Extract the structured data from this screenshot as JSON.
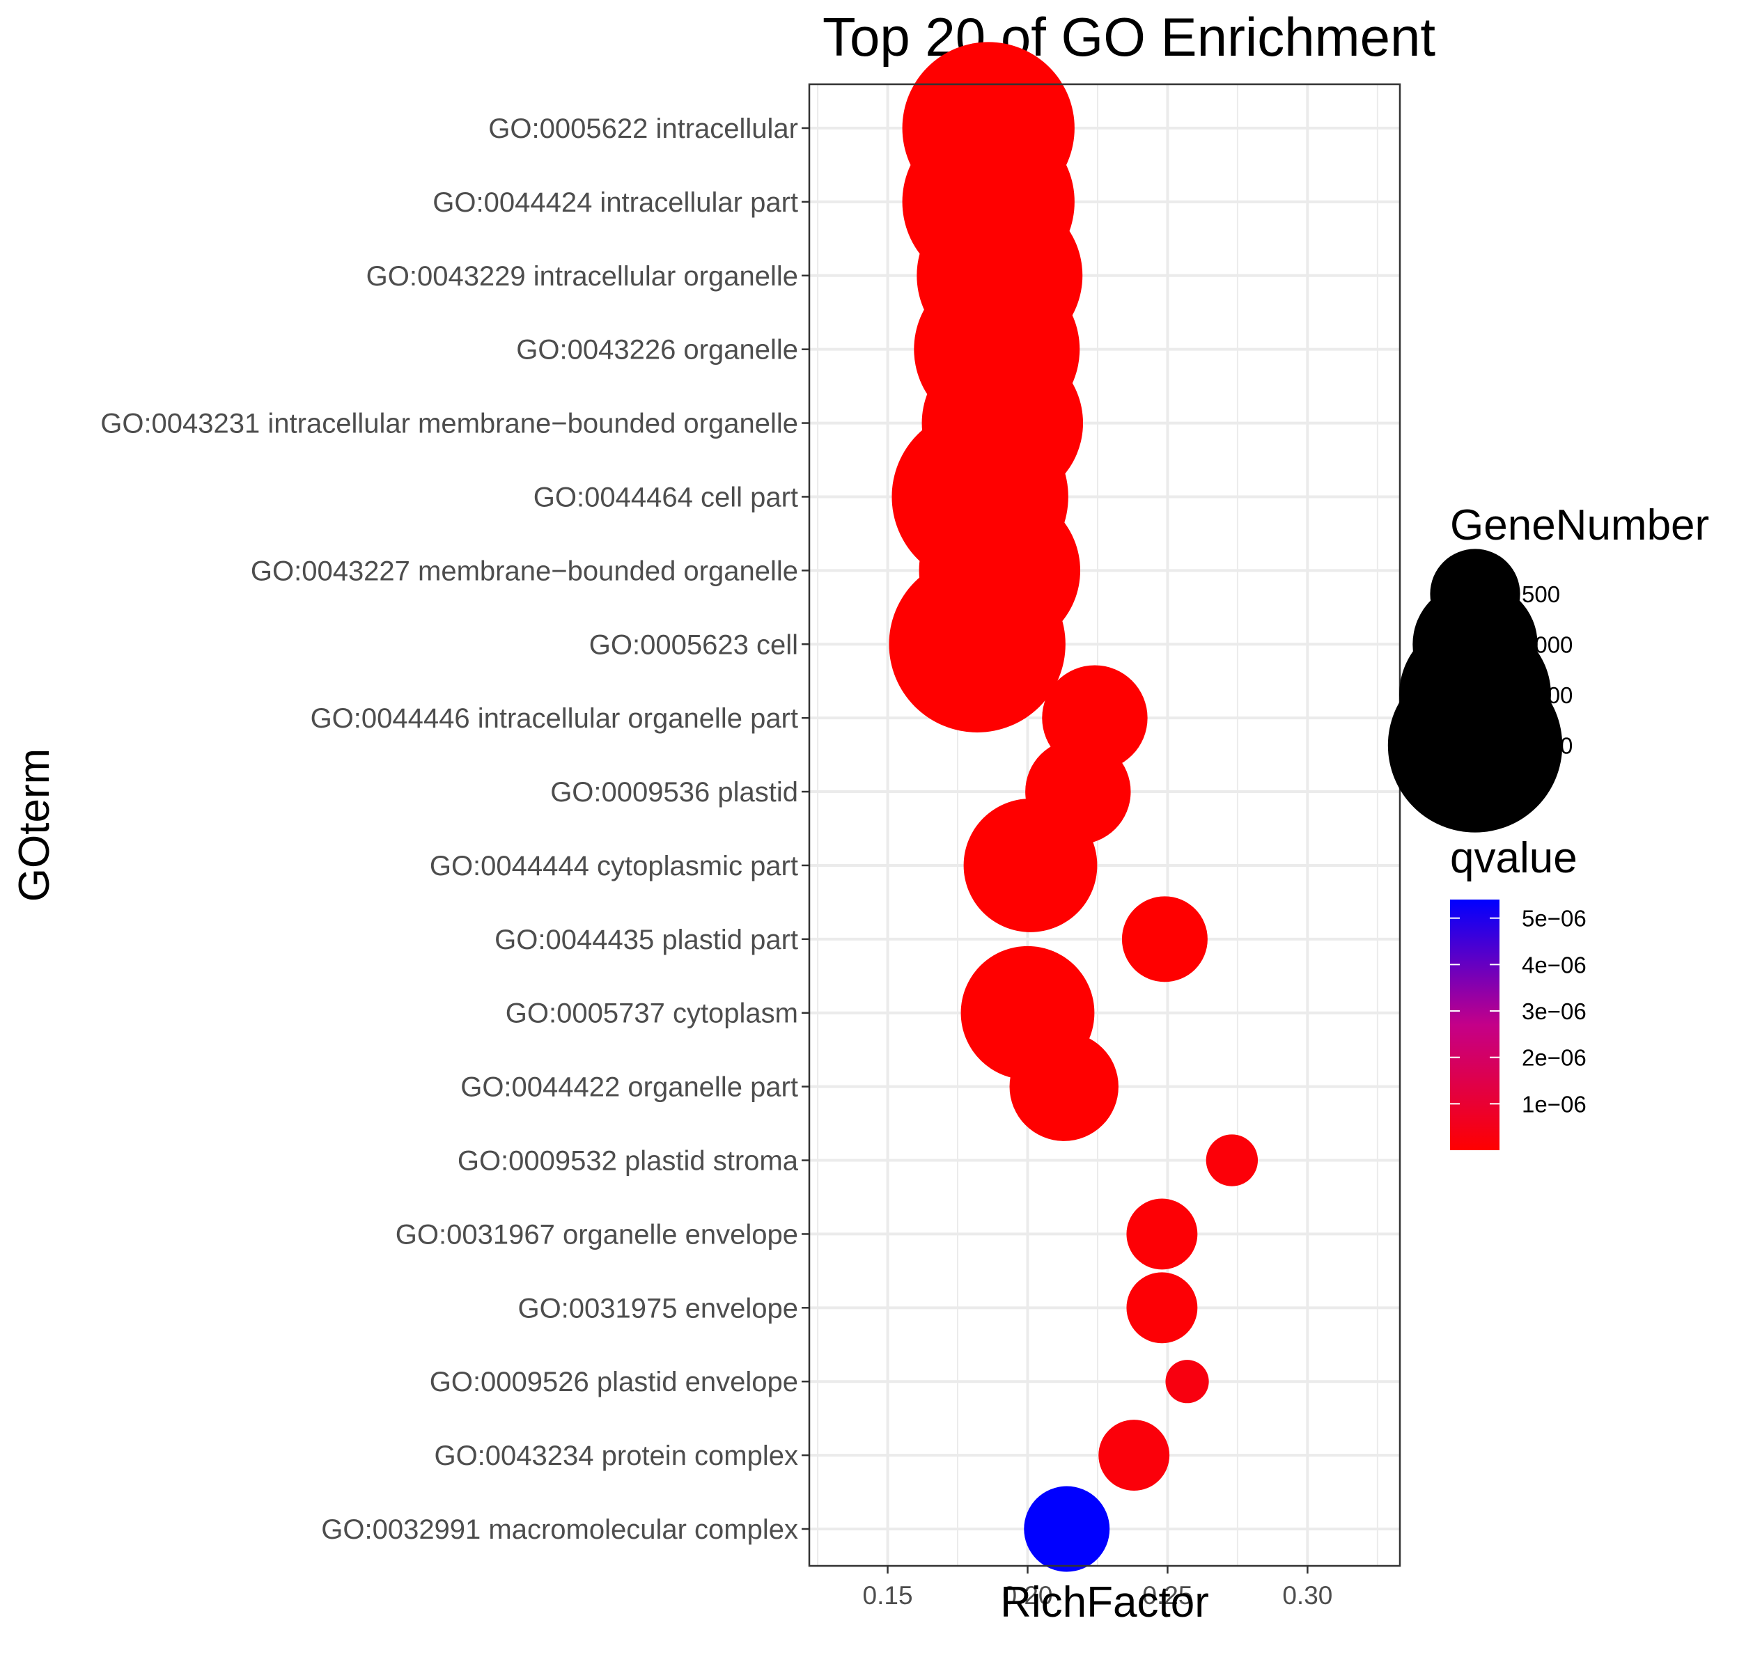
{
  "chart_data": {
    "type": "scatter",
    "title": "Top 20 of GO Enrichment",
    "xlabel": "RichFactor",
    "ylabel": "GOterm",
    "xlim": [
      0.122,
      0.333
    ],
    "xticks": [
      "0.15",
      "0.20",
      "0.25",
      "0.30"
    ],
    "xtick_values": [
      0.15,
      0.2,
      0.25,
      0.3
    ],
    "grid": true,
    "legend_position": "right",
    "size_legend": {
      "title": "GeneNumber",
      "values": [
        500,
        1000,
        1500,
        2000
      ]
    },
    "color_legend": {
      "title": "qvalue",
      "ticks": [
        "5e−06",
        "4e−06",
        "3e−06",
        "2e−06",
        "1e−06"
      ],
      "tick_values": [
        5e-06,
        4e-06,
        3e-06,
        2e-06,
        1e-06
      ],
      "range": [
        0,
        5.4e-06
      ],
      "low_color": "#ff0000",
      "high_color": "#0000ff"
    },
    "points": [
      {
        "term": "GO:0005622 intracellular",
        "x": 0.186,
        "gene_number": 1950,
        "qvalue": 0
      },
      {
        "term": "GO:0044424 intracellular part",
        "x": 0.186,
        "gene_number": 1950,
        "qvalue": 0
      },
      {
        "term": "GO:0043229 intracellular organelle",
        "x": 0.19,
        "gene_number": 1800,
        "qvalue": 0
      },
      {
        "term": "GO:0043226 organelle",
        "x": 0.189,
        "gene_number": 1800,
        "qvalue": 0
      },
      {
        "term": "GO:0043231 intracellular membrane−bounded organelle",
        "x": 0.191,
        "gene_number": 1700,
        "qvalue": 0
      },
      {
        "term": "GO:0044464 cell part",
        "x": 0.183,
        "gene_number": 2050,
        "qvalue": 0
      },
      {
        "term": "GO:0043227 membrane−bounded organelle",
        "x": 0.19,
        "gene_number": 1700,
        "qvalue": 0
      },
      {
        "term": "GO:0005623 cell",
        "x": 0.182,
        "gene_number": 2050,
        "qvalue": 0
      },
      {
        "term": "GO:0044446 intracellular organelle part",
        "x": 0.224,
        "gene_number": 700,
        "qvalue": 0
      },
      {
        "term": "GO:0009536 plastid",
        "x": 0.218,
        "gene_number": 700,
        "qvalue": 0
      },
      {
        "term": "GO:0044444 cytoplasmic part",
        "x": 0.201,
        "gene_number": 1150,
        "qvalue": 0
      },
      {
        "term": "GO:0044435 plastid part",
        "x": 0.249,
        "gene_number": 450,
        "qvalue": 0
      },
      {
        "term": "GO:0005737 cytoplasm",
        "x": 0.2,
        "gene_number": 1150,
        "qvalue": 0
      },
      {
        "term": "GO:0044422 organelle part",
        "x": 0.213,
        "gene_number": 750,
        "qvalue": 0
      },
      {
        "term": "GO:0009532 plastid stroma",
        "x": 0.273,
        "gene_number": 150,
        "qvalue": 1.5e-07
      },
      {
        "term": "GO:0031967 organelle envelope",
        "x": 0.248,
        "gene_number": 300,
        "qvalue": 1e-07
      },
      {
        "term": "GO:0031975 envelope",
        "x": 0.248,
        "gene_number": 300,
        "qvalue": 1e-07
      },
      {
        "term": "GO:0009526 plastid envelope",
        "x": 0.257,
        "gene_number": 100,
        "qvalue": 3e-07
      },
      {
        "term": "GO:0043234 protein complex",
        "x": 0.238,
        "gene_number": 300,
        "qvalue": 2e-07
      },
      {
        "term": "GO:0032991 macromolecular complex",
        "x": 0.214,
        "gene_number": 450,
        "qvalue": 5.4e-06
      }
    ]
  }
}
